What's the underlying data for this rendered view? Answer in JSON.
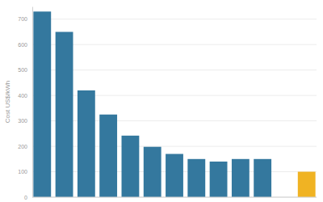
{
  "chart_data": {
    "type": "bar",
    "y_label": "Cost US$/kWh",
    "categories": [
      null,
      null,
      null,
      null,
      null,
      null,
      null,
      null,
      null,
      null,
      null,
      null,
      null
    ],
    "values": [
      730,
      650,
      420,
      325,
      242,
      198,
      170,
      150,
      140,
      150,
      150,
      null,
      100
    ],
    "colors": [
      "#34789e",
      "#34789e",
      "#34789e",
      "#34789e",
      "#34789e",
      "#34789e",
      "#34789e",
      "#34789e",
      "#34789e",
      "#34789e",
      "#34789e",
      null,
      "#f0b323"
    ],
    "ylim": [
      0,
      750
    ],
    "yticks": [
      0,
      100,
      200,
      300,
      400,
      500,
      600,
      700
    ],
    "grid": true,
    "tick_labels": "y"
  }
}
